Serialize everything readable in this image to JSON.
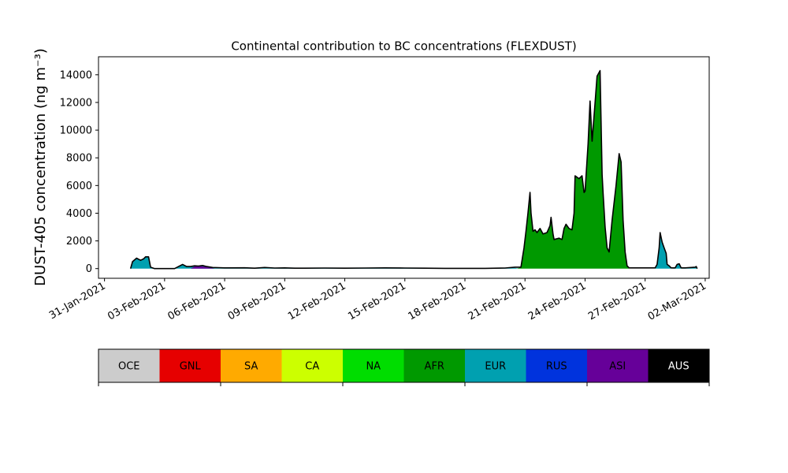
{
  "chart_data": {
    "type": "area",
    "title": "Continental contribution to BC concentrations (FLEXDUST)",
    "xlabel": "",
    "ylabel": "DUST-405 concentration (ng m⁻³)",
    "ylim": [
      -700,
      15300
    ],
    "yticks": [
      0,
      2000,
      4000,
      6000,
      8000,
      10000,
      12000,
      14000
    ],
    "xlim_days": [
      -0.3,
      30.2
    ],
    "xticks": [
      {
        "label": "31-Jan-2021",
        "day": 0
      },
      {
        "label": "03-Feb-2021",
        "day": 3
      },
      {
        "label": "06-Feb-2021",
        "day": 6
      },
      {
        "label": "09-Feb-2021",
        "day": 9
      },
      {
        "label": "12-Feb-2021",
        "day": 12
      },
      {
        "label": "15-Feb-2021",
        "day": 15
      },
      {
        "label": "18-Feb-2021",
        "day": 18
      },
      {
        "label": "21-Feb-2021",
        "day": 21
      },
      {
        "label": "24-Feb-2021",
        "day": 24
      },
      {
        "label": "27-Feb-2021",
        "day": 27
      },
      {
        "label": "02-Mar-2021",
        "day": 30
      }
    ],
    "legend_position": "bottom colorbar",
    "legend": [
      {
        "name": "OCE",
        "color": "#cccccc",
        "text_color": "#000000"
      },
      {
        "name": "GNL",
        "color": "#e60000",
        "text_color": "#000000"
      },
      {
        "name": "SA",
        "color": "#ffaa00",
        "text_color": "#000000"
      },
      {
        "name": "CA",
        "color": "#ccff00",
        "text_color": "#000000"
      },
      {
        "name": "NA",
        "color": "#00dd00",
        "text_color": "#000000"
      },
      {
        "name": "AFR",
        "color": "#009900",
        "text_color": "#000000"
      },
      {
        "name": "EUR",
        "color": "#00a0b0",
        "text_color": "#000000"
      },
      {
        "name": "RUS",
        "color": "#0033dd",
        "text_color": "#000000"
      },
      {
        "name": "ASI",
        "color": "#660099",
        "text_color": "#000000"
      },
      {
        "name": "AUS",
        "color": "#000000",
        "text_color": "#ffffff"
      }
    ],
    "series": [
      {
        "name": "EUR",
        "color": "#00a0b0",
        "points": [
          [
            1.3,
            0
          ],
          [
            1.4,
            500
          ],
          [
            1.6,
            750
          ],
          [
            1.8,
            600
          ],
          [
            1.95,
            700
          ],
          [
            2.05,
            850
          ],
          [
            2.2,
            850
          ],
          [
            2.3,
            100
          ],
          [
            2.5,
            0
          ],
          [
            3.5,
            0
          ],
          [
            3.7,
            150
          ],
          [
            3.9,
            300
          ],
          [
            4.1,
            150
          ],
          [
            4.3,
            120
          ],
          [
            4.5,
            180
          ],
          [
            4.7,
            120
          ],
          [
            4.9,
            180
          ],
          [
            5.1,
            120
          ],
          [
            5.4,
            50
          ],
          [
            6.0,
            20
          ],
          [
            7.0,
            50
          ],
          [
            7.5,
            20
          ],
          [
            8.0,
            60
          ],
          [
            8.5,
            40
          ],
          [
            9.0,
            50
          ],
          [
            9.5,
            20
          ],
          [
            10,
            20
          ],
          [
            11,
            20
          ],
          [
            12,
            30
          ],
          [
            13,
            30
          ],
          [
            14,
            40
          ],
          [
            15,
            30
          ],
          [
            16,
            30
          ],
          [
            17,
            20
          ],
          [
            18,
            20
          ],
          [
            19,
            20
          ],
          [
            20,
            40
          ],
          [
            20.5,
            50
          ],
          [
            20.7,
            0
          ],
          [
            27.5,
            0
          ],
          [
            27.6,
            300
          ],
          [
            27.7,
            1500
          ],
          [
            27.75,
            2600
          ],
          [
            27.85,
            1900
          ],
          [
            27.95,
            1500
          ],
          [
            28.05,
            1100
          ],
          [
            28.1,
            300
          ],
          [
            28.2,
            200
          ],
          [
            28.3,
            0
          ],
          [
            28.5,
            30
          ],
          [
            28.6,
            300
          ],
          [
            28.7,
            350
          ],
          [
            28.8,
            0
          ],
          [
            29.0,
            50
          ],
          [
            29.3,
            80
          ],
          [
            29.5,
            100
          ],
          [
            29.55,
            150
          ],
          [
            29.6,
            0
          ]
        ]
      },
      {
        "name": "AFR",
        "color": "#009900",
        "points": [
          [
            20.6,
            0
          ],
          [
            20.8,
            100
          ],
          [
            20.95,
            1500
          ],
          [
            21.05,
            2700
          ],
          [
            21.15,
            4000
          ],
          [
            21.25,
            5500
          ],
          [
            21.3,
            4000
          ],
          [
            21.4,
            2700
          ],
          [
            21.5,
            2800
          ],
          [
            21.6,
            2600
          ],
          [
            21.75,
            2900
          ],
          [
            21.9,
            2500
          ],
          [
            22.1,
            2600
          ],
          [
            22.25,
            3100
          ],
          [
            22.3,
            3700
          ],
          [
            22.4,
            2500
          ],
          [
            22.45,
            2100
          ],
          [
            22.7,
            2200
          ],
          [
            22.85,
            2100
          ],
          [
            22.95,
            2900
          ],
          [
            23.05,
            3200
          ],
          [
            23.2,
            2900
          ],
          [
            23.35,
            2800
          ],
          [
            23.45,
            4000
          ],
          [
            23.5,
            6700
          ],
          [
            23.7,
            6500
          ],
          [
            23.85,
            6700
          ],
          [
            23.95,
            5500
          ],
          [
            24.0,
            5600
          ],
          [
            24.15,
            9000
          ],
          [
            24.25,
            12100
          ],
          [
            24.3,
            10600
          ],
          [
            24.35,
            9200
          ],
          [
            24.5,
            12000
          ],
          [
            24.6,
            13900
          ],
          [
            24.75,
            14300
          ],
          [
            24.85,
            6800
          ],
          [
            24.9,
            5500
          ],
          [
            25.0,
            3000
          ],
          [
            25.1,
            1500
          ],
          [
            25.2,
            1200
          ],
          [
            25.35,
            3500
          ],
          [
            25.55,
            6000
          ],
          [
            25.7,
            8300
          ],
          [
            25.8,
            7700
          ],
          [
            25.9,
            3500
          ],
          [
            26.0,
            1200
          ],
          [
            26.1,
            200
          ],
          [
            26.2,
            0
          ]
        ]
      },
      {
        "name": "ASI",
        "color": "#660099",
        "points": [
          [
            4.3,
            0
          ],
          [
            4.5,
            150
          ],
          [
            4.7,
            220
          ],
          [
            4.9,
            150
          ],
          [
            5.1,
            120
          ],
          [
            5.3,
            60
          ],
          [
            5.5,
            0
          ]
        ]
      }
    ],
    "total": [
      [
        1.3,
        0
      ],
      [
        1.4,
        500
      ],
      [
        1.6,
        750
      ],
      [
        1.8,
        600
      ],
      [
        1.95,
        700
      ],
      [
        2.05,
        850
      ],
      [
        2.2,
        850
      ],
      [
        2.3,
        100
      ],
      [
        2.5,
        0
      ],
      [
        3.5,
        0
      ],
      [
        3.7,
        150
      ],
      [
        3.9,
        300
      ],
      [
        4.1,
        150
      ],
      [
        4.3,
        150
      ],
      [
        4.5,
        200
      ],
      [
        4.7,
        180
      ],
      [
        4.9,
        220
      ],
      [
        5.1,
        150
      ],
      [
        5.4,
        80
      ],
      [
        6.0,
        50
      ],
      [
        7.0,
        60
      ],
      [
        7.5,
        30
      ],
      [
        8.0,
        80
      ],
      [
        8.5,
        40
      ],
      [
        9.0,
        50
      ],
      [
        9.5,
        30
      ],
      [
        10,
        30
      ],
      [
        11,
        40
      ],
      [
        12,
        30
      ],
      [
        13,
        40
      ],
      [
        14,
        50
      ],
      [
        15,
        40
      ],
      [
        16,
        30
      ],
      [
        17,
        20
      ],
      [
        18,
        20
      ],
      [
        19,
        20
      ],
      [
        20,
        40
      ],
      [
        20.5,
        100
      ],
      [
        20.8,
        100
      ],
      [
        20.95,
        1500
      ],
      [
        21.05,
        2700
      ],
      [
        21.15,
        4000
      ],
      [
        21.25,
        5500
      ],
      [
        21.3,
        4000
      ],
      [
        21.4,
        2700
      ],
      [
        21.5,
        2800
      ],
      [
        21.6,
        2600
      ],
      [
        21.75,
        2900
      ],
      [
        21.9,
        2500
      ],
      [
        22.1,
        2600
      ],
      [
        22.25,
        3100
      ],
      [
        22.3,
        3700
      ],
      [
        22.4,
        2500
      ],
      [
        22.45,
        2100
      ],
      [
        22.7,
        2200
      ],
      [
        22.85,
        2100
      ],
      [
        22.95,
        2900
      ],
      [
        23.05,
        3200
      ],
      [
        23.2,
        2900
      ],
      [
        23.35,
        2800
      ],
      [
        23.45,
        4000
      ],
      [
        23.5,
        6700
      ],
      [
        23.7,
        6500
      ],
      [
        23.85,
        6700
      ],
      [
        23.95,
        5500
      ],
      [
        24.0,
        5600
      ],
      [
        24.15,
        9000
      ],
      [
        24.25,
        12100
      ],
      [
        24.3,
        10600
      ],
      [
        24.35,
        9200
      ],
      [
        24.5,
        12000
      ],
      [
        24.6,
        13900
      ],
      [
        24.75,
        14300
      ],
      [
        24.85,
        6800
      ],
      [
        24.9,
        5500
      ],
      [
        25.0,
        3000
      ],
      [
        25.1,
        1500
      ],
      [
        25.2,
        1200
      ],
      [
        25.35,
        3500
      ],
      [
        25.55,
        6000
      ],
      [
        25.7,
        8300
      ],
      [
        25.8,
        7700
      ],
      [
        25.9,
        3500
      ],
      [
        26.0,
        1200
      ],
      [
        26.1,
        200
      ],
      [
        26.2,
        50
      ],
      [
        27.0,
        50
      ],
      [
        27.5,
        50
      ],
      [
        27.6,
        300
      ],
      [
        27.7,
        1500
      ],
      [
        27.75,
        2600
      ],
      [
        27.85,
        1900
      ],
      [
        27.95,
        1500
      ],
      [
        28.05,
        1100
      ],
      [
        28.1,
        300
      ],
      [
        28.2,
        200
      ],
      [
        28.3,
        50
      ],
      [
        28.5,
        50
      ],
      [
        28.6,
        300
      ],
      [
        28.7,
        350
      ],
      [
        28.8,
        50
      ],
      [
        29.0,
        50
      ],
      [
        29.3,
        80
      ],
      [
        29.5,
        100
      ],
      [
        29.55,
        150
      ],
      [
        29.6,
        0
      ]
    ]
  }
}
